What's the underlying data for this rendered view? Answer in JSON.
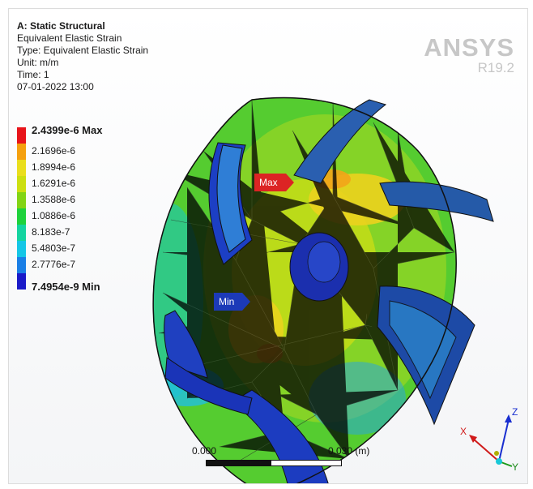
{
  "info": {
    "title": "A: Static Structural",
    "result": "Equivalent Elastic Strain",
    "type": "Type: Equivalent Elastic Strain",
    "unit": "Unit: m/m",
    "time": "Time: 1",
    "date": "07-01-2022 13:00"
  },
  "legend": [
    {
      "label": "2.4399e-6 Max",
      "color": "#e8141a",
      "bold": true
    },
    {
      "label": "2.1696e-6",
      "color": "#f5a00e",
      "bold": false
    },
    {
      "label": "1.8994e-6",
      "color": "#eade1c",
      "bold": false
    },
    {
      "label": "1.6291e-6",
      "color": "#ccdf10",
      "bold": false
    },
    {
      "label": "1.3588e-6",
      "color": "#82d414",
      "bold": false
    },
    {
      "label": "1.0886e-6",
      "color": "#1ed23c",
      "bold": false
    },
    {
      "label": "8.183e-7",
      "color": "#14d4a0",
      "bold": false
    },
    {
      "label": "5.4803e-7",
      "color": "#14c6e6",
      "bold": false
    },
    {
      "label": "2.7776e-7",
      "color": "#1a7fe6",
      "bold": false
    },
    {
      "label": "7.4954e-9 Min",
      "color": "#1a1ac8",
      "bold": true
    }
  ],
  "logo": {
    "brand": "ANSYS",
    "version": "R19.2"
  },
  "probes": {
    "max": "Max",
    "min": "Min"
  },
  "scale": {
    "start": "0.000",
    "end": "0.030 (m)"
  },
  "triad": {
    "x": "X",
    "y": "Y",
    "z": "Z"
  },
  "icons": [
    "max-probe-icon",
    "min-probe-icon",
    "axis-triad-icon"
  ]
}
